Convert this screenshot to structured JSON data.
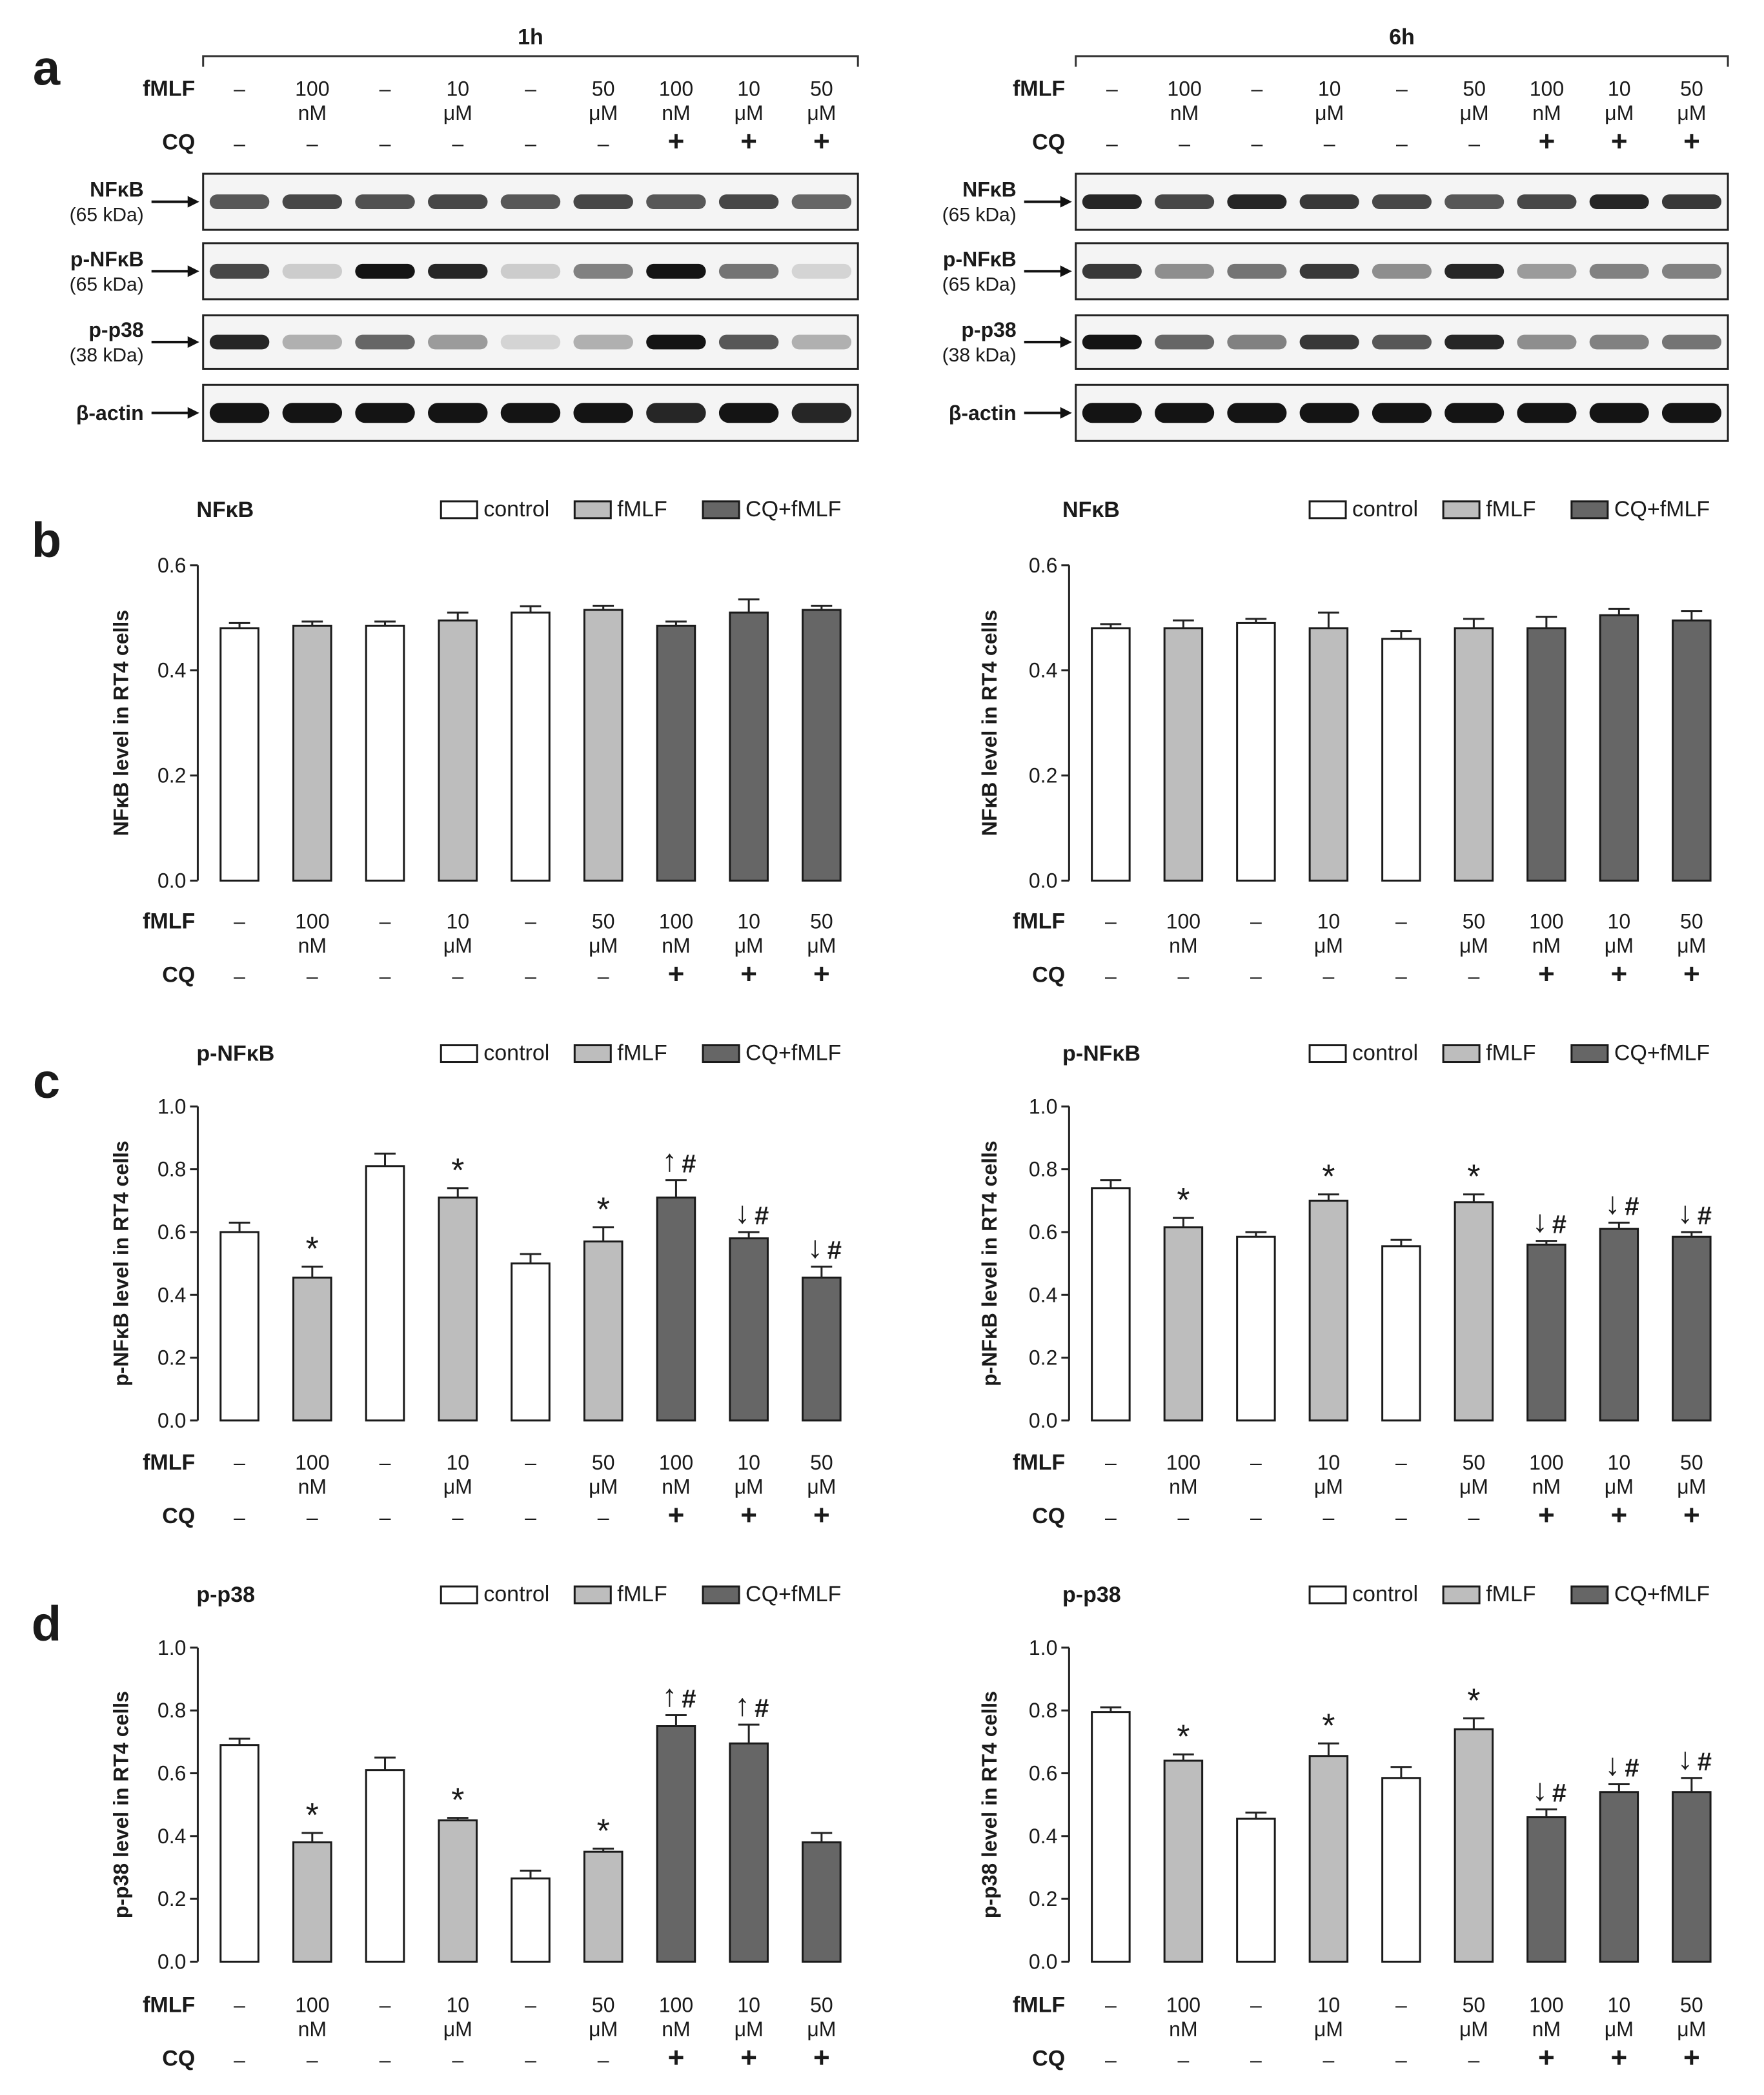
{
  "panel_letters": [
    "a",
    "b",
    "c",
    "d"
  ],
  "blot_section": {
    "timepoints": [
      "1h",
      "6h"
    ],
    "rows": [
      {
        "name": "NFκB",
        "sub": "(65 kDa)",
        "key": "nfkb"
      },
      {
        "name": "p-NFκB",
        "sub": "(65 kDa)",
        "key": "pnfkb"
      },
      {
        "name": "p-p38",
        "sub": "(38 kDa)",
        "key": "pp38"
      },
      {
        "name": "β-actin",
        "sub": "",
        "key": "actin"
      }
    ]
  },
  "conditions": {
    "fmlf_label": "fMLF",
    "cq_label": "CQ",
    "fmlf_top": [
      "–",
      "100",
      "–",
      "10",
      "–",
      "50",
      "100",
      "10",
      "50"
    ],
    "fmlf_bottom": [
      "",
      "nM",
      "",
      "μM",
      "",
      "μM",
      "nM",
      "μM",
      "μM"
    ],
    "cq": [
      "–",
      "–",
      "–",
      "–",
      "–",
      "–",
      "+",
      "+",
      "+"
    ]
  },
  "legend": {
    "control": "control",
    "fmlf": "fMLF",
    "cqfmlf": "CQ+fMLF"
  },
  "colors": {
    "control": "#ffffff",
    "fmlf": "#bdbdbd",
    "cqfmlf": "#666666",
    "stroke": "#1a1a1a"
  },
  "chart_data": [
    {
      "type": "bar",
      "panel": "b",
      "time": "1h",
      "title": "NFκB",
      "ylabel": "NFκB level in RT4 cells",
      "ylim": [
        0,
        0.6
      ],
      "yticks": [
        "0.0",
        "0.2",
        "0.4",
        "0.6"
      ],
      "groups": [
        "control",
        "fmlf",
        "control",
        "fmlf",
        "control",
        "fmlf",
        "cqfmlf",
        "cqfmlf",
        "cqfmlf"
      ],
      "values": [
        0.48,
        0.485,
        0.485,
        0.495,
        0.51,
        0.515,
        0.485,
        0.51,
        0.515
      ],
      "errors": [
        0.01,
        0.008,
        0.008,
        0.015,
        0.012,
        0.008,
        0.008,
        0.025,
        0.008
      ],
      "annotations": [
        [],
        [],
        [],
        [],
        [],
        [],
        [],
        [],
        []
      ]
    },
    {
      "type": "bar",
      "panel": "b",
      "time": "6h",
      "title": "NFκB",
      "ylabel": "NFκB level in RT4 cells",
      "ylim": [
        0,
        0.6
      ],
      "yticks": [
        "0.0",
        "0.2",
        "0.4",
        "0.6"
      ],
      "groups": [
        "control",
        "fmlf",
        "control",
        "fmlf",
        "control",
        "fmlf",
        "cqfmlf",
        "cqfmlf",
        "cqfmlf"
      ],
      "values": [
        0.48,
        0.48,
        0.49,
        0.48,
        0.46,
        0.48,
        0.48,
        0.505,
        0.495
      ],
      "errors": [
        0.008,
        0.015,
        0.008,
        0.03,
        0.015,
        0.018,
        0.022,
        0.012,
        0.018
      ],
      "annotations": [
        [],
        [],
        [],
        [],
        [],
        [],
        [],
        [],
        []
      ]
    },
    {
      "type": "bar",
      "panel": "c",
      "time": "1h",
      "title": "p-NFκB",
      "ylabel": "p-NFκB level in RT4 cells",
      "ylim": [
        0,
        1.0
      ],
      "yticks": [
        "0.0",
        "0.2",
        "0.4",
        "0.6",
        "0.8",
        "1.0"
      ],
      "groups": [
        "control",
        "fmlf",
        "control",
        "fmlf",
        "control",
        "fmlf",
        "cqfmlf",
        "cqfmlf",
        "cqfmlf"
      ],
      "values": [
        0.6,
        0.455,
        0.81,
        0.71,
        0.5,
        0.57,
        0.71,
        0.58,
        0.455
      ],
      "errors": [
        0.03,
        0.035,
        0.04,
        0.03,
        0.03,
        0.045,
        0.055,
        0.02,
        0.035
      ],
      "annotations": [
        [],
        [
          "*"
        ],
        [],
        [
          "*"
        ],
        [],
        [
          "*"
        ],
        [
          "↑",
          "#"
        ],
        [
          "↓",
          "#"
        ],
        [
          "↓",
          "#"
        ]
      ]
    },
    {
      "type": "bar",
      "panel": "c",
      "time": "6h",
      "title": "p-NFκB",
      "ylabel": "p-NFκB level in RT4 cells",
      "ylim": [
        0,
        1.0
      ],
      "yticks": [
        "0.0",
        "0.2",
        "0.4",
        "0.6",
        "0.8",
        "1.0"
      ],
      "groups": [
        "control",
        "fmlf",
        "control",
        "fmlf",
        "control",
        "fmlf",
        "cqfmlf",
        "cqfmlf",
        "cqfmlf"
      ],
      "values": [
        0.74,
        0.615,
        0.585,
        0.7,
        0.555,
        0.695,
        0.56,
        0.61,
        0.585
      ],
      "errors": [
        0.025,
        0.03,
        0.015,
        0.02,
        0.02,
        0.025,
        0.012,
        0.02,
        0.015
      ],
      "annotations": [
        [],
        [
          "*"
        ],
        [],
        [
          "*"
        ],
        [],
        [
          "*"
        ],
        [
          "↓",
          "#"
        ],
        [
          "↓",
          "#"
        ],
        [
          "↓",
          "#"
        ]
      ]
    },
    {
      "type": "bar",
      "panel": "d",
      "time": "1h",
      "title": "p-p38",
      "ylabel": "p-p38 level in RT4 cells",
      "ylim": [
        0,
        1.0
      ],
      "yticks": [
        "0.0",
        "0.2",
        "0.4",
        "0.6",
        "0.8",
        "1.0"
      ],
      "groups": [
        "control",
        "fmlf",
        "control",
        "fmlf",
        "control",
        "fmlf",
        "cqfmlf",
        "cqfmlf",
        "cqfmlf"
      ],
      "values": [
        0.69,
        0.38,
        0.61,
        0.45,
        0.265,
        0.35,
        0.75,
        0.695,
        0.38
      ],
      "errors": [
        0.02,
        0.03,
        0.04,
        0.008,
        0.025,
        0.01,
        0.035,
        0.06,
        0.03
      ],
      "annotations": [
        [],
        [
          "*"
        ],
        [],
        [
          "*"
        ],
        [],
        [
          "*"
        ],
        [
          "↑",
          "#"
        ],
        [
          "↑",
          "#"
        ],
        []
      ]
    },
    {
      "type": "bar",
      "panel": "d",
      "time": "6h",
      "title": "p-p38",
      "ylabel": "p-p38 level in RT4 cells",
      "ylim": [
        0,
        1.0
      ],
      "yticks": [
        "0.0",
        "0.2",
        "0.4",
        "0.6",
        "0.8",
        "1.0"
      ],
      "groups": [
        "control",
        "fmlf",
        "control",
        "fmlf",
        "control",
        "fmlf",
        "cqfmlf",
        "cqfmlf",
        "cqfmlf"
      ],
      "values": [
        0.795,
        0.64,
        0.455,
        0.655,
        0.585,
        0.74,
        0.46,
        0.54,
        0.54
      ],
      "errors": [
        0.015,
        0.02,
        0.02,
        0.04,
        0.035,
        0.035,
        0.025,
        0.025,
        0.045
      ],
      "annotations": [
        [],
        [
          "*"
        ],
        [],
        [
          "*"
        ],
        [],
        [
          "*"
        ],
        [
          "↓",
          "#"
        ],
        [
          "↓",
          "#"
        ],
        [
          "↓",
          "#"
        ]
      ]
    }
  ]
}
